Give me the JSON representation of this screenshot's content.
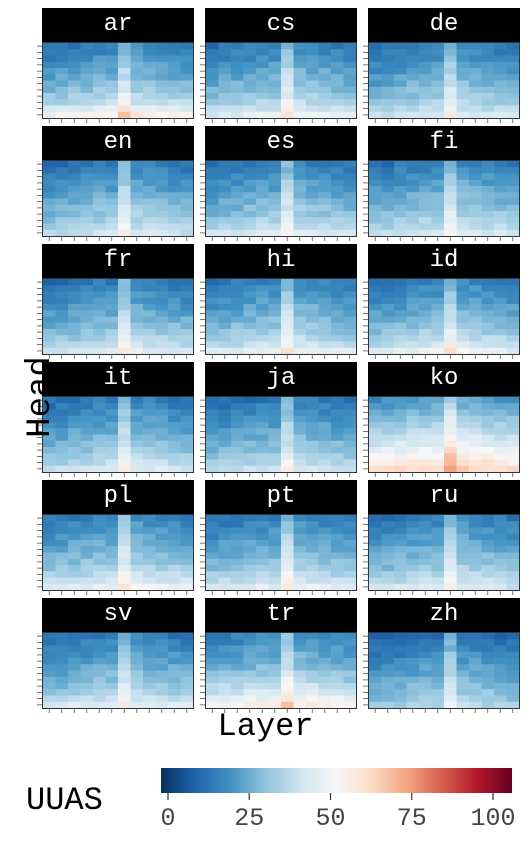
{
  "axes": {
    "ylabel": "Head",
    "xlabel": "Layer"
  },
  "legend": {
    "title": "UUAS",
    "ticks": [
      "0",
      "25",
      "50",
      "75",
      "100"
    ],
    "tick_values": [
      0,
      25,
      50,
      75,
      100
    ],
    "range": [
      0,
      100
    ],
    "colors": [
      "#053061",
      "#2166ac",
      "#4393c3",
      "#92c5de",
      "#d1e5f0",
      "#f7f7f7",
      "#fddbc7",
      "#f4a582",
      "#d6604d",
      "#b2182b",
      "#67001f"
    ]
  },
  "chart_data": {
    "type": "heatmap",
    "xlabel": "Layer",
    "ylabel": "Head",
    "legend_title": "UUAS",
    "color_scale": {
      "min": 0,
      "max": 100,
      "scheme": "diverging blue-white-red"
    },
    "layers": 12,
    "heads": 12,
    "facets": [
      {
        "label": "ar",
        "row_base": [
          16,
          18,
          20,
          22,
          24,
          26,
          28,
          31,
          34,
          38,
          44,
          52
        ]
      },
      {
        "label": "cs",
        "row_base": [
          16,
          18,
          20,
          22,
          24,
          26,
          28,
          30,
          32,
          35,
          39,
          45
        ]
      },
      {
        "label": "de",
        "row_base": [
          15,
          17,
          19,
          21,
          23,
          25,
          27,
          29,
          31,
          34,
          37,
          42
        ]
      },
      {
        "label": "en",
        "row_base": [
          15,
          17,
          19,
          21,
          23,
          25,
          27,
          29,
          31,
          33,
          36,
          40
        ]
      },
      {
        "label": "es",
        "row_base": [
          15,
          17,
          19,
          21,
          23,
          25,
          27,
          29,
          31,
          34,
          37,
          42
        ]
      },
      {
        "label": "fi",
        "row_base": [
          16,
          18,
          20,
          22,
          24,
          26,
          28,
          30,
          32,
          34,
          37,
          41
        ]
      },
      {
        "label": "fr",
        "row_base": [
          15,
          17,
          19,
          21,
          23,
          25,
          27,
          29,
          31,
          34,
          37,
          42
        ]
      },
      {
        "label": "hi",
        "row_base": [
          16,
          18,
          20,
          22,
          24,
          26,
          28,
          30,
          32,
          35,
          39,
          44
        ]
      },
      {
        "label": "id",
        "row_base": [
          16,
          18,
          20,
          22,
          24,
          26,
          28,
          30,
          33,
          36,
          40,
          46
        ]
      },
      {
        "label": "it",
        "row_base": [
          15,
          17,
          19,
          21,
          23,
          25,
          27,
          29,
          31,
          34,
          37,
          41
        ]
      },
      {
        "label": "ja",
        "row_base": [
          14,
          16,
          18,
          20,
          22,
          24,
          26,
          28,
          30,
          33,
          36,
          40
        ]
      },
      {
        "label": "ko",
        "row_base": [
          22,
          25,
          28,
          31,
          34,
          37,
          40,
          44,
          48,
          52,
          56,
          60
        ]
      },
      {
        "label": "pl",
        "row_base": [
          17,
          19,
          21,
          23,
          25,
          27,
          29,
          31,
          34,
          37,
          41,
          46
        ]
      },
      {
        "label": "pt",
        "row_base": [
          16,
          18,
          20,
          22,
          24,
          26,
          28,
          30,
          32,
          35,
          39,
          44
        ]
      },
      {
        "label": "ru",
        "row_base": [
          16,
          18,
          20,
          22,
          24,
          26,
          28,
          30,
          32,
          35,
          38,
          42
        ]
      },
      {
        "label": "sv",
        "row_base": [
          15,
          17,
          19,
          21,
          23,
          25,
          27,
          29,
          31,
          34,
          38,
          44
        ]
      },
      {
        "label": "tr",
        "row_base": [
          18,
          20,
          22,
          24,
          26,
          28,
          31,
          34,
          38,
          42,
          47,
          53
        ]
      },
      {
        "label": "zh",
        "row_base": [
          12,
          14,
          16,
          18,
          20,
          22,
          24,
          26,
          28,
          30,
          32,
          35
        ]
      }
    ],
    "layer_offset": [
      -4,
      -3,
      -2,
      -1,
      0,
      0,
      12,
      2,
      1,
      0,
      -1,
      -2
    ]
  }
}
